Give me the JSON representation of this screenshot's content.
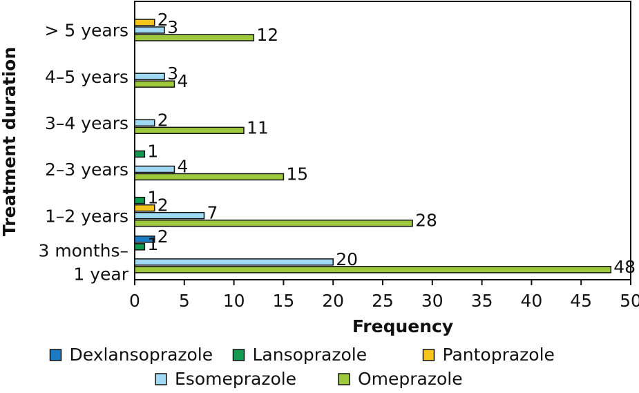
{
  "chart_data": {
    "type": "hbar",
    "x_label": "Frequency",
    "y_label": "Treatment duration",
    "categories": [
      "3 months–\n1 year",
      "1–2 years",
      "2–3 years",
      "3–4 years",
      "4–5 years",
      "> 5 years"
    ],
    "series": [
      {
        "name": "Dexlansoprazole",
        "color": "#1b7cc5",
        "values": [
          2,
          null,
          null,
          null,
          null,
          null
        ]
      },
      {
        "name": "Lansoprazole",
        "color": "#119a50",
        "values": [
          1,
          1,
          1,
          null,
          null,
          null
        ]
      },
      {
        "name": "Pantoprazole",
        "color": "#f6c41a",
        "values": [
          null,
          2,
          null,
          null,
          null,
          2
        ]
      },
      {
        "name": "Esomeprazole",
        "color": "#a0d9f3",
        "values": [
          20,
          7,
          4,
          2,
          3,
          3
        ]
      },
      {
        "name": "Omeprazole",
        "color": "#9ec93d",
        "values": [
          48,
          28,
          15,
          11,
          4,
          12
        ]
      }
    ],
    "xlim": [
      0,
      50
    ],
    "xticks": [
      0,
      5,
      10,
      15,
      20,
      25,
      30,
      35,
      40,
      45,
      50
    ],
    "grid": false,
    "legend": "bottom"
  }
}
